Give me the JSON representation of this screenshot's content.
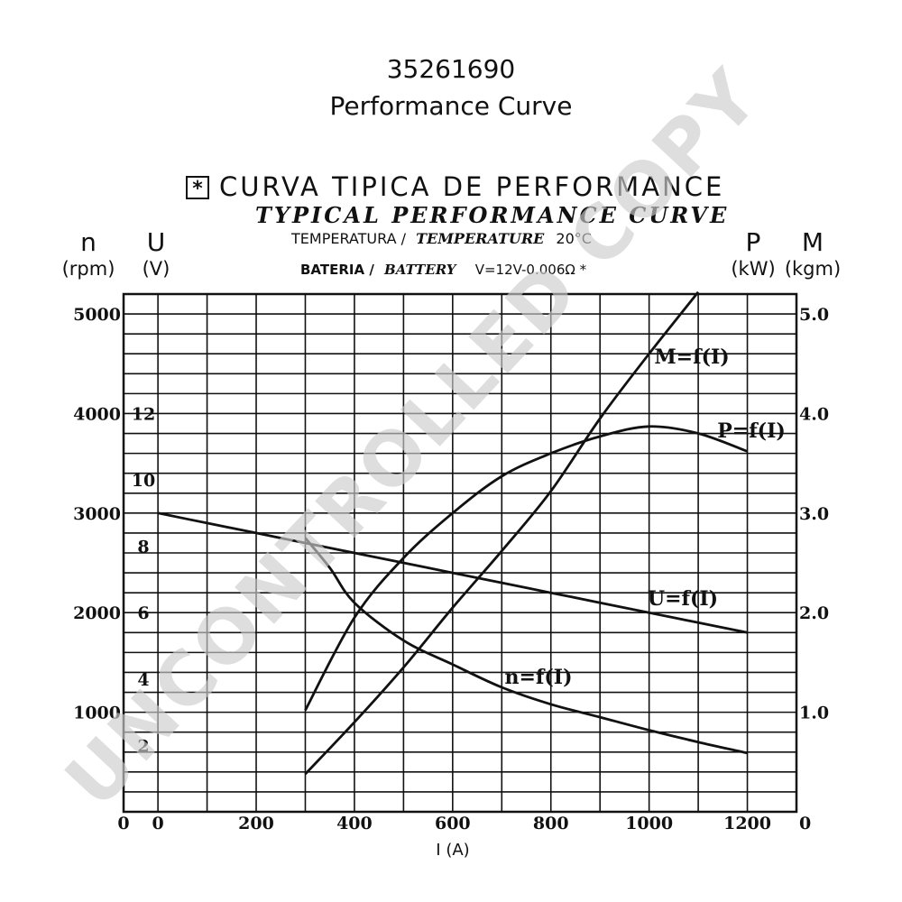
{
  "header": {
    "part_number": "35261690",
    "title": "Performance Curve"
  },
  "chart_data": {
    "type": "line",
    "title_pt": "CURVA TIPICA DE PERFORMANCE",
    "title_en": "TYPICAL PERFORMANCE CURVE",
    "title_symbol": "*",
    "temperature_label_pt": "TEMPERATURA /",
    "temperature_label_en": "TEMPERATURE",
    "temperature_value": "20°C",
    "battery_label_pt": "BATERIA /",
    "battery_label_en": "BATTERY",
    "battery_value": "V=12V-0.006Ω *",
    "watermark": "UNCONTROLLED COPY",
    "x_axis": {
      "label": "I (A)",
      "range": [
        -70,
        1300
      ],
      "ticks": [
        0,
        200,
        400,
        600,
        800,
        1000,
        1200
      ],
      "tick_labels": [
        "0",
        "200",
        "400",
        "600",
        "800",
        "1000",
        "1200"
      ],
      "origin_label": "0"
    },
    "y_axes": {
      "n": {
        "symbol": "n",
        "unit": "(rpm)",
        "range": [
          0,
          5200
        ],
        "ticks": [
          1000,
          2000,
          3000,
          4000,
          5000
        ],
        "tick_labels": [
          "1000",
          "2000",
          "3000",
          "4000",
          "5000"
        ],
        "zero_label": "0"
      },
      "U": {
        "symbol": "U",
        "unit": "(V)",
        "range": [
          0,
          15.6
        ],
        "ticks": [
          2,
          4,
          6,
          8,
          10,
          12
        ],
        "tick_labels": [
          "2",
          "4",
          "6",
          "8",
          "10",
          "12"
        ]
      },
      "P": {
        "symbol": "P",
        "unit": "(kW)",
        "range": [
          0,
          5.2
        ],
        "ticks": [
          1,
          2,
          3,
          4,
          5
        ],
        "tick_labels": [
          "1.0",
          "2.0",
          "3.0",
          "4.0",
          "5.0"
        ],
        "zero_label": "0"
      },
      "M": {
        "symbol": "M",
        "unit": "(kgm)"
      }
    },
    "grid": true,
    "series": [
      {
        "name": "M=f(I)",
        "axis": "P",
        "x": [
          300,
          400,
          500,
          600,
          700,
          800,
          900,
          1000,
          1100
        ],
        "y": [
          0.38,
          0.9,
          1.45,
          2.05,
          2.62,
          3.22,
          3.95,
          4.6,
          5.22
        ]
      },
      {
        "name": "P=f(I)",
        "axis": "P",
        "x": [
          300,
          400,
          500,
          600,
          700,
          800,
          900,
          1000,
          1100,
          1200
        ],
        "y": [
          1.02,
          1.95,
          2.55,
          3.0,
          3.37,
          3.6,
          3.77,
          3.87,
          3.8,
          3.62
        ]
      },
      {
        "name": "U=f(I)",
        "axis": "U",
        "x": [
          0,
          100,
          200,
          300,
          400,
          500,
          600,
          700,
          800,
          900,
          1000,
          1100,
          1200
        ],
        "y": [
          9.0,
          8.7,
          8.4,
          8.1,
          7.8,
          7.5,
          7.2,
          6.9,
          6.6,
          6.3,
          6.0,
          5.7,
          5.4
        ]
      },
      {
        "name": "n=f(I)",
        "axis": "n",
        "x": [
          300,
          350,
          400,
          500,
          600,
          700,
          800,
          900,
          1000,
          1100,
          1200
        ],
        "y": [
          2750,
          2450,
          2100,
          1720,
          1480,
          1250,
          1080,
          950,
          820,
          700,
          590
        ]
      }
    ]
  }
}
